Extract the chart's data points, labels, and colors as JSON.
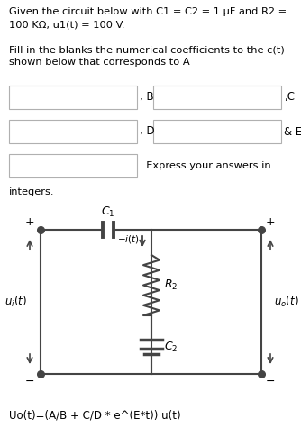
{
  "title_text": "Given the circuit below with C1 = C2 = 1 μF and R2 =\n100 KΩ, u1(t) = 100 V.",
  "fill_text": "Fill in the blanks the numerical coefficients to the c(t)\nshown below that corresponds to A",
  "label_B": ", B",
  "label_C": ",C",
  "label_D": ", D",
  "label_BE": "& E",
  "label_express": ". Express your answers in",
  "label_int": "integers.",
  "equation": "Uo(t)=(A/B + C/D * e^(E*t)) u(t)",
  "box_color": "#ffffff",
  "border_color": "#b0b0b0",
  "bg_color": "#ffffff",
  "text_color": "#000000",
  "circuit_color": "#444444"
}
